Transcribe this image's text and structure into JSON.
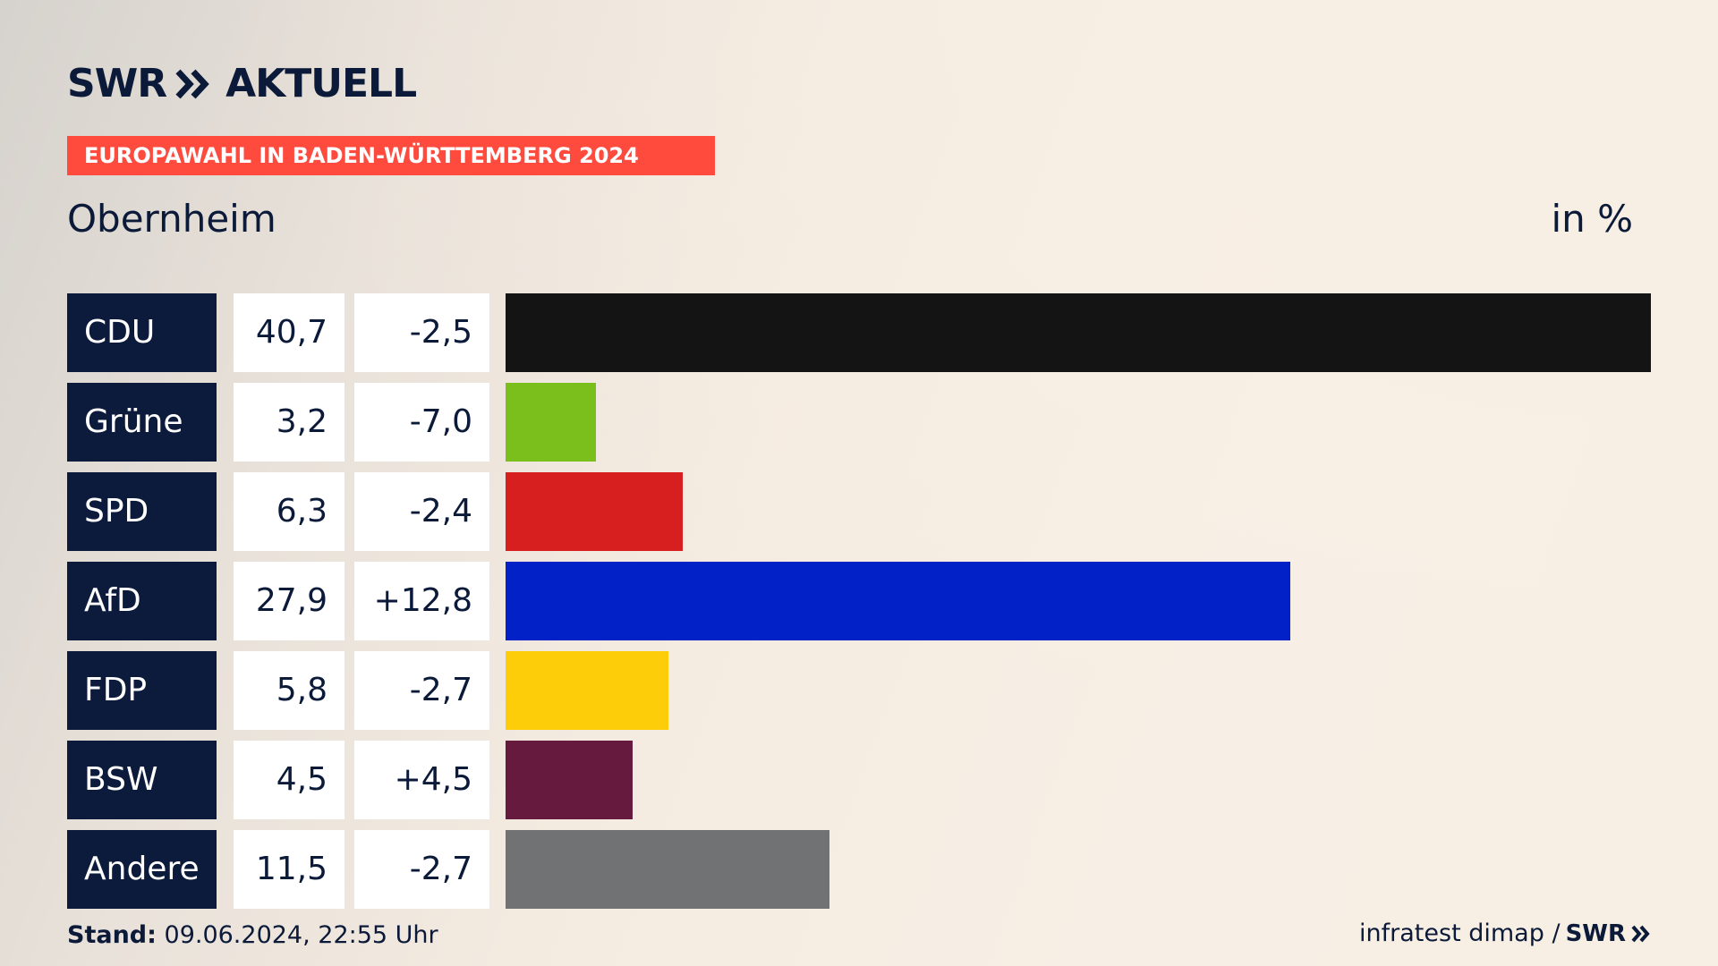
{
  "header": {
    "brand": "SWR",
    "brand_suffix": "AKTUELL",
    "banner": "EUROPAWAHL IN BADEN-WÜRTTEMBERG 2024",
    "place": "Obernheim",
    "unit": "in %"
  },
  "colors": {
    "navy": "#0c1b3b",
    "banner": "#ff4b3e"
  },
  "chart_data": {
    "type": "bar",
    "orientation": "horizontal",
    "title": "Obernheim",
    "unit": "in %",
    "xlim": [
      0,
      40.7
    ],
    "parties": [
      {
        "name": "CDU",
        "value": 40.7,
        "value_label": "40,7",
        "diff": -2.5,
        "diff_label": "-2,5",
        "color": "#141414"
      },
      {
        "name": "Grüne",
        "value": 3.2,
        "value_label": "3,2",
        "diff": -7.0,
        "diff_label": "-7,0",
        "color": "#7bbf1c"
      },
      {
        "name": "SPD",
        "value": 6.3,
        "value_label": "6,3",
        "diff": -2.4,
        "diff_label": "-2,4",
        "color": "#d71f1f"
      },
      {
        "name": "AfD",
        "value": 27.9,
        "value_label": "27,9",
        "diff": 12.8,
        "diff_label": "+12,8",
        "color": "#0221c7"
      },
      {
        "name": "FDP",
        "value": 5.8,
        "value_label": "5,8",
        "diff": -2.7,
        "diff_label": "-2,7",
        "color": "#fecd09"
      },
      {
        "name": "BSW",
        "value": 4.5,
        "value_label": "4,5",
        "diff": 4.5,
        "diff_label": "+4,5",
        "color": "#661a3d"
      },
      {
        "name": "Andere",
        "value": 11.5,
        "value_label": "11,5",
        "diff": -2.7,
        "diff_label": "-2,7",
        "color": "#717273"
      }
    ]
  },
  "footer": {
    "stand_label": "Stand:",
    "stand_value": "09.06.2024, 22:55 Uhr",
    "source": "infratest dimap /",
    "source_brand": "SWR"
  }
}
